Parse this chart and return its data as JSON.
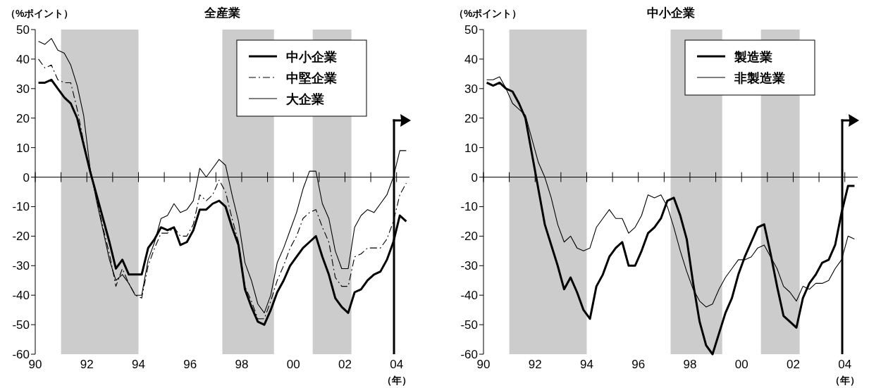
{
  "chart_data": [
    {
      "type": "line",
      "title": "全産業",
      "ylabel": "（%ポイント）",
      "xlabel": "（年）",
      "x": [
        1990.125,
        1990.375,
        1990.625,
        1990.875,
        1991.125,
        1991.375,
        1991.625,
        1991.875,
        1992.125,
        1992.375,
        1992.625,
        1992.875,
        1993.125,
        1993.375,
        1993.625,
        1993.875,
        1994.125,
        1994.375,
        1994.625,
        1994.875,
        1995.125,
        1995.375,
        1995.625,
        1995.875,
        1996.125,
        1996.375,
        1996.625,
        1996.875,
        1997.125,
        1997.375,
        1997.625,
        1997.875,
        1998.125,
        1998.375,
        1998.625,
        1998.875,
        1999.125,
        1999.375,
        1999.625,
        1999.875,
        2000.125,
        2000.375,
        2000.625,
        2000.875,
        2001.125,
        2001.375,
        2001.625,
        2001.875,
        2002.125,
        2002.375,
        2002.625,
        2002.875,
        2003.125,
        2003.375,
        2003.625,
        2003.875,
        2004.125,
        2004.375
      ],
      "series": [
        {
          "name": "中小企業",
          "color": "#000000",
          "line_style": "solid",
          "values": [
            32,
            32,
            33,
            30,
            27,
            25,
            20,
            11,
            2,
            -6,
            -14,
            -22,
            -31,
            -28,
            -33,
            -33,
            -33,
            -24,
            -21,
            -17,
            -18,
            -17,
            -23,
            -22,
            -18,
            -11,
            -11,
            -9,
            -8,
            -10,
            -17,
            -23,
            -38,
            -44,
            -49,
            -50,
            -45,
            -39,
            -35,
            -30,
            -27,
            -24,
            -22,
            -20,
            -27,
            -33,
            -41,
            -44,
            -46,
            -39,
            -38,
            -35,
            -33,
            -32,
            -28,
            -22,
            -13,
            -15
          ]
        },
        {
          "name": "中堅企業",
          "color": "#000000",
          "line_style": "dashdot",
          "values": [
            40,
            37,
            38,
            33,
            32,
            32,
            23,
            12,
            2,
            -7,
            -17,
            -26,
            -37,
            -31,
            -36,
            -40,
            -41,
            -30,
            -24,
            -19,
            -19,
            -17,
            -20,
            -20,
            -16,
            -6,
            -8,
            -6,
            -1,
            -5,
            -14,
            -22,
            -37,
            -42,
            -48,
            -48,
            -42,
            -35,
            -30,
            -24,
            -20,
            -14,
            -12,
            -11,
            -17,
            -22,
            -34,
            -37,
            -37,
            -27,
            -26,
            -24,
            -24,
            -24,
            -21,
            -15,
            -6,
            -2
          ]
        },
        {
          "name": "大企業",
          "color": "#000000",
          "line_style": "solid",
          "values": [
            46,
            45,
            47,
            43,
            42,
            38,
            31,
            21,
            3,
            -8,
            -18,
            -28,
            -35,
            -33,
            -36,
            -40,
            -40,
            -28,
            -22,
            -14,
            -13,
            -9,
            -12,
            -11,
            -8,
            3,
            0,
            3,
            6,
            4,
            -6,
            -15,
            -29,
            -35,
            -43,
            -46,
            -40,
            -29,
            -24,
            -18,
            -12,
            -4,
            2,
            2,
            -9,
            -14,
            -25,
            -31,
            -31,
            -17,
            -13,
            -11,
            -12,
            -9,
            -6,
            0,
            9,
            9
          ]
        }
      ],
      "xlim": [
        1990,
        2004.5
      ],
      "ylim": [
        -60,
        50
      ],
      "xticks": [
        {
          "value": 1990,
          "label": "90"
        },
        {
          "value": 1991,
          "label": null
        },
        {
          "value": 1992,
          "label": "92"
        },
        {
          "value": 1993,
          "label": null
        },
        {
          "value": 1994,
          "label": "94"
        },
        {
          "value": 1995,
          "label": null
        },
        {
          "value": 1996,
          "label": "96"
        },
        {
          "value": 1997,
          "label": null
        },
        {
          "value": 1998,
          "label": "98"
        },
        {
          "value": 1999,
          "label": null
        },
        {
          "value": 2000,
          "label": "00"
        },
        {
          "value": 2001,
          "label": null
        },
        {
          "value": 2002,
          "label": "02"
        },
        {
          "value": 2003,
          "label": null
        },
        {
          "value": 2004,
          "label": "04"
        }
      ],
      "yticks": [
        -60,
        -50,
        -40,
        -30,
        -20,
        -10,
        0,
        10,
        20,
        30,
        40,
        50
      ],
      "bands": [
        {
          "axis": "x",
          "from": 1991,
          "to": 1994,
          "color": "#cccccc"
        },
        {
          "axis": "x",
          "from": 1997.25,
          "to": 1999.25,
          "color": "#cccccc"
        },
        {
          "axis": "x",
          "from": 2000.75,
          "to": 2002.25,
          "color": "#cccccc"
        }
      ],
      "ref_lines": [
        {
          "axis": "x",
          "value": 2003.9,
          "color": "#000000"
        }
      ],
      "legend": "top right"
    },
    {
      "type": "line",
      "title": "中小企業",
      "ylabel": "（%ポイント）",
      "xlabel": "（年）",
      "x": [
        1990.125,
        1990.375,
        1990.625,
        1990.875,
        1991.125,
        1991.375,
        1991.625,
        1991.875,
        1992.125,
        1992.375,
        1992.625,
        1992.875,
        1993.125,
        1993.375,
        1993.625,
        1993.875,
        1994.125,
        1994.375,
        1994.625,
        1994.875,
        1995.125,
        1995.375,
        1995.625,
        1995.875,
        1996.125,
        1996.375,
        1996.625,
        1996.875,
        1997.125,
        1997.375,
        1997.625,
        1997.875,
        1998.125,
        1998.375,
        1998.625,
        1998.875,
        1999.125,
        1999.375,
        1999.625,
        1999.875,
        2000.125,
        2000.375,
        2000.625,
        2000.875,
        2001.125,
        2001.375,
        2001.625,
        2001.875,
        2002.125,
        2002.375,
        2002.625,
        2002.875,
        2003.125,
        2003.375,
        2003.625,
        2003.875,
        2004.125,
        2004.375
      ],
      "series": [
        {
          "name": "製造業",
          "color": "#000000",
          "line_style": "solid",
          "values": [
            32,
            31,
            32,
            30,
            29,
            25,
            20,
            8,
            -4,
            -16,
            -23,
            -30,
            -38,
            -34,
            -39,
            -45,
            -48,
            -37,
            -33,
            -27,
            -24,
            -22,
            -30,
            -30,
            -25,
            -19,
            -17,
            -14,
            -8,
            -7,
            -13,
            -21,
            -36,
            -49,
            -57,
            -60,
            -53,
            -46,
            -41,
            -33,
            -27,
            -22,
            -17,
            -16,
            -26,
            -37,
            -47,
            -49,
            -51,
            -41,
            -36,
            -33,
            -29,
            -28,
            -23,
            -12,
            -3,
            -3
          ]
        },
        {
          "name": "非製造業",
          "color": "#000000",
          "line_style": "solid",
          "values": [
            33,
            33,
            34,
            30,
            25,
            23,
            21,
            13,
            5,
            0,
            -7,
            -16,
            -22,
            -20,
            -24,
            -25,
            -24,
            -17,
            -14,
            -11,
            -14,
            -14,
            -19,
            -17,
            -13,
            -6,
            -7,
            -6,
            -10,
            -17,
            -25,
            -32,
            -38,
            -42,
            -44,
            -43,
            -38,
            -34,
            -31,
            -28,
            -28,
            -27,
            -24,
            -23,
            -27,
            -31,
            -37,
            -39,
            -42,
            -37,
            -38,
            -36,
            -36,
            -35,
            -31,
            -28,
            -20,
            -21
          ]
        }
      ],
      "xlim": [
        1990,
        2004.5
      ],
      "ylim": [
        -60,
        50
      ],
      "xticks": [
        {
          "value": 1990,
          "label": "90"
        },
        {
          "value": 1991,
          "label": null
        },
        {
          "value": 1992,
          "label": "92"
        },
        {
          "value": 1993,
          "label": null
        },
        {
          "value": 1994,
          "label": "94"
        },
        {
          "value": 1995,
          "label": null
        },
        {
          "value": 1996,
          "label": "96"
        },
        {
          "value": 1997,
          "label": null
        },
        {
          "value": 1998,
          "label": "98"
        },
        {
          "value": 1999,
          "label": null
        },
        {
          "value": 2000,
          "label": "00"
        },
        {
          "value": 2001,
          "label": null
        },
        {
          "value": 2002,
          "label": "02"
        },
        {
          "value": 2003,
          "label": null
        },
        {
          "value": 2004,
          "label": "04"
        }
      ],
      "yticks": [
        -60,
        -50,
        -40,
        -30,
        -20,
        -10,
        0,
        10,
        20,
        30,
        40,
        50
      ],
      "bands": [
        {
          "axis": "x",
          "from": 1991,
          "to": 1994,
          "color": "#cccccc"
        },
        {
          "axis": "x",
          "from": 1997.25,
          "to": 1999.25,
          "color": "#cccccc"
        },
        {
          "axis": "x",
          "from": 2000.75,
          "to": 2002.25,
          "color": "#cccccc"
        }
      ],
      "ref_lines": [
        {
          "axis": "x",
          "value": 2003.9,
          "color": "#000000"
        }
      ],
      "legend": "top right"
    }
  ]
}
